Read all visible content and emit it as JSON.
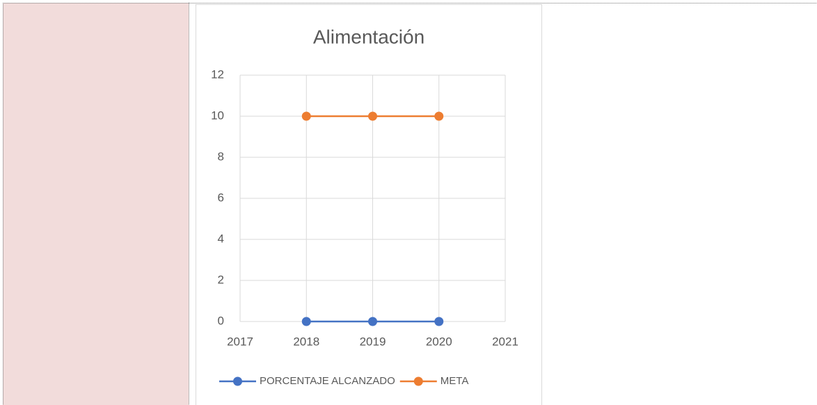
{
  "chart_data": {
    "type": "line",
    "title": "Alimentación",
    "x": [
      2018,
      2019,
      2020
    ],
    "series": [
      {
        "name": "PORCENTAJE ALCANZADO",
        "color": "#4472c4",
        "values": [
          0,
          0,
          0
        ]
      },
      {
        "name": "META",
        "color": "#ed7d31",
        "values": [
          10,
          10,
          10
        ]
      }
    ],
    "xlim": [
      2017,
      2021
    ],
    "xticks": [
      2017,
      2018,
      2019,
      2020,
      2021
    ],
    "ylim": [
      0,
      12
    ],
    "yticks": [
      0,
      2,
      4,
      6,
      8,
      10,
      12
    ],
    "grid": true,
    "legend": "bottom"
  }
}
